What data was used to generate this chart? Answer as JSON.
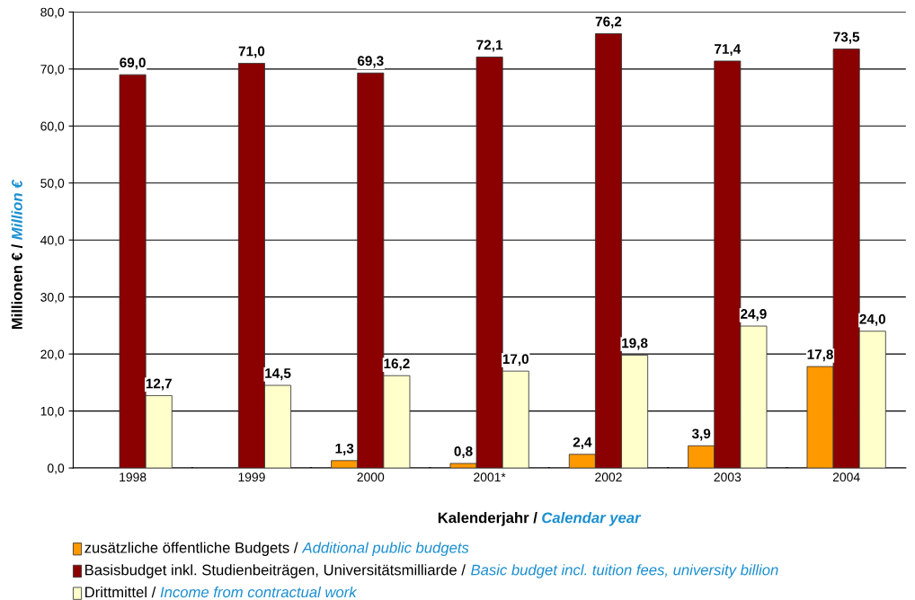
{
  "chart_data": {
    "type": "bar",
    "xlabel": "Kalenderjahr / Calendar year",
    "ylabel": "Millionen € / Million €",
    "categories": [
      "1998",
      "1999",
      "2000",
      "2001*",
      "2002",
      "2003",
      "2004"
    ],
    "series": [
      {
        "name": "zusätzliche öffentliche Budgets / Additional public budgets",
        "color": "#ff9900",
        "values": [
          null,
          null,
          1.3,
          0.8,
          2.4,
          3.9,
          17.8
        ],
        "value_labels": [
          null,
          null,
          "1,3",
          "0,8",
          "2,4",
          "3,9",
          "17,8"
        ]
      },
      {
        "name": "Basisbudget inkl. Studienbeiträgen, Universitätsmilliarde / Basic budget incl. tuition fees, university billion",
        "color": "#8b0000",
        "values": [
          69.0,
          71.0,
          69.3,
          72.1,
          76.2,
          71.4,
          73.5
        ],
        "value_labels": [
          "69,0",
          "71,0",
          "69,3",
          "72,1",
          "76,2",
          "71,4",
          "73,5"
        ]
      },
      {
        "name": "Drittmittel / Income from contractual work",
        "color": "#ffffcc",
        "values": [
          12.7,
          14.5,
          16.2,
          17.0,
          19.8,
          24.9,
          24.0
        ],
        "value_labels": [
          "12,7",
          "14,5",
          "16,2",
          "17,0",
          "19,8",
          "24,9",
          "24,0"
        ]
      }
    ],
    "ylim": [
      0,
      80
    ],
    "yticks": [
      {
        "value": 0,
        "label": "0,0"
      },
      {
        "value": 10,
        "label": "10,0"
      },
      {
        "value": 20,
        "label": "20,0"
      },
      {
        "value": 30,
        "label": "30,0"
      },
      {
        "value": 40,
        "label": "40,0"
      },
      {
        "value": 50,
        "label": "50,0"
      },
      {
        "value": 60,
        "label": "60,0"
      },
      {
        "value": 70,
        "label": "70,0"
      },
      {
        "value": 80,
        "label": "80,0"
      }
    ],
    "grid": "y",
    "legend": "bottom"
  }
}
